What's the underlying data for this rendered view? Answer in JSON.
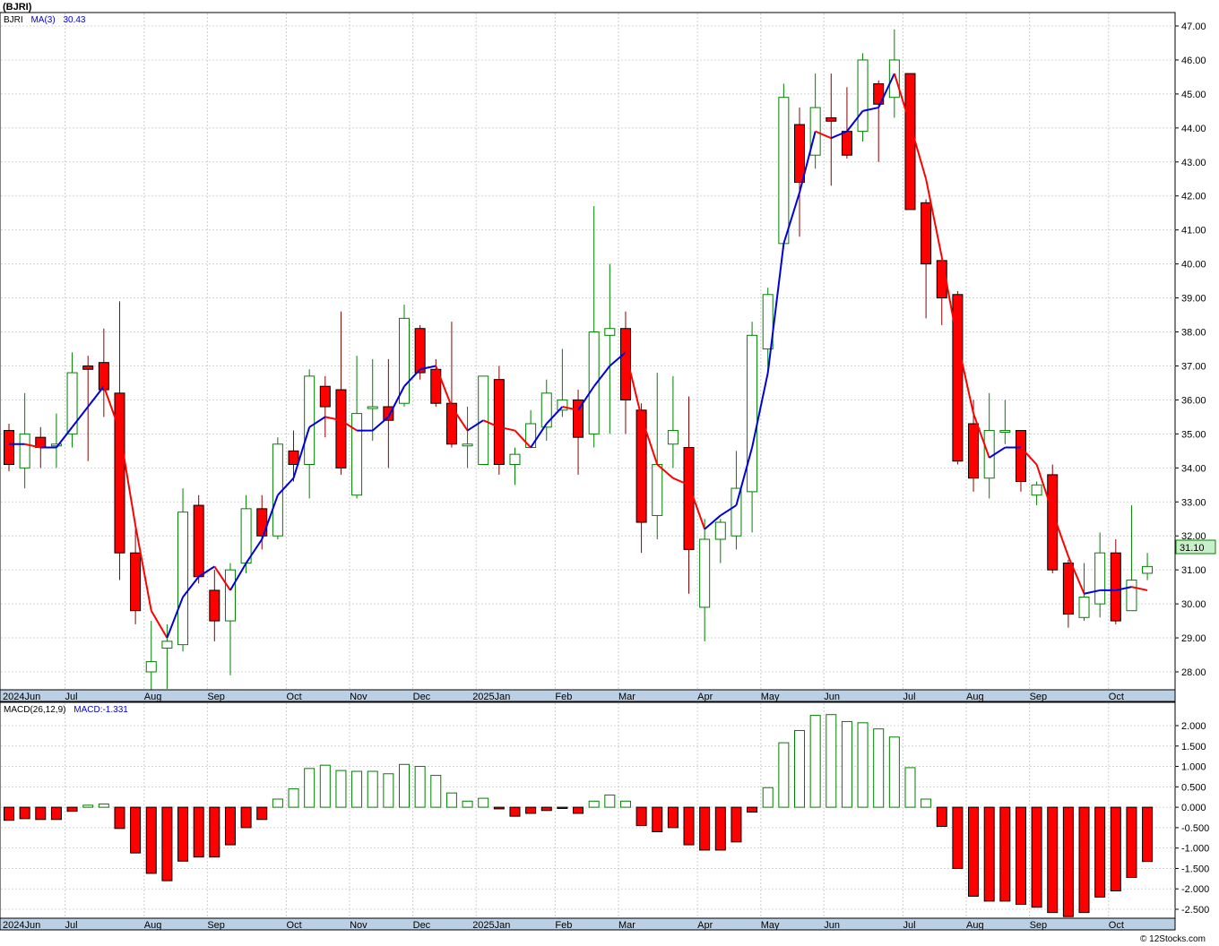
{
  "title": "(BJRI)",
  "credit": "© 12Stocks.com",
  "colors": {
    "up_candle": "#008000",
    "down_candle": "#ff0000",
    "ma_up": "#0000dd",
    "ma_down": "#ff0000",
    "axis_bar": "#bcd0e5",
    "last_price_box": "#c8f0c8"
  },
  "price_panel": {
    "legend_symbol": "BJRI",
    "legend_ma": "MA(3)",
    "legend_ma_value": "30.43",
    "last_price": "31.10",
    "y_ticks": [
      "28.00",
      "29.00",
      "30.00",
      "31.00",
      "32.00",
      "33.00",
      "34.00",
      "35.00",
      "36.00",
      "37.00",
      "38.00",
      "39.00",
      "40.00",
      "41.00",
      "42.00",
      "43.00",
      "44.00",
      "45.00",
      "46.00",
      "47.00"
    ]
  },
  "macd_panel": {
    "legend_label": "MACD(26,12,9)",
    "legend_value": "MACD:-1.331",
    "y_ticks": [
      "2.000",
      "1.500",
      "1.000",
      "0.500",
      "0.000",
      "-0.500",
      "-1.000",
      "-1.500",
      "-2.000",
      "-2.500"
    ]
  },
  "x_axis_labels": [
    {
      "label": "2024Jun",
      "week": 0
    },
    {
      "label": "Jul",
      "week": 4
    },
    {
      "label": "Aug",
      "week": 9
    },
    {
      "label": "Sep",
      "week": 13
    },
    {
      "label": "Oct",
      "week": 18
    },
    {
      "label": "Nov",
      "week": 22
    },
    {
      "label": "Dec",
      "week": 26
    },
    {
      "label": "2025Jan",
      "week": 30
    },
    {
      "label": "Feb",
      "week": 35
    },
    {
      "label": "Mar",
      "week": 39
    },
    {
      "label": "Apr",
      "week": 44
    },
    {
      "label": "May",
      "week": 48
    },
    {
      "label": "Jun",
      "week": 52
    },
    {
      "label": "Jul",
      "week": 57
    },
    {
      "label": "Aug",
      "week": 61
    },
    {
      "label": "Sep",
      "week": 65
    },
    {
      "label": "Oct",
      "week": 70
    }
  ],
  "chart_data": [
    {
      "type": "candlestick",
      "title": "(BJRI)",
      "ylim": [
        27.5,
        47.3
      ],
      "grid": true,
      "series": [
        {
          "name": "BJRI",
          "ohlc": [
            [
              35.1,
              35.3,
              33.9,
              34.1
            ],
            [
              34.0,
              36.2,
              33.4,
              35.0
            ],
            [
              34.9,
              35.2,
              34.0,
              34.6
            ],
            [
              34.7,
              35.6,
              34.0,
              34.7
            ],
            [
              35.0,
              37.4,
              34.6,
              36.8
            ],
            [
              37.0,
              37.3,
              34.2,
              36.9
            ],
            [
              37.1,
              38.1,
              35.5,
              36.3
            ],
            [
              36.2,
              38.9,
              30.7,
              31.5
            ],
            [
              31.5,
              32.2,
              29.4,
              29.8
            ],
            [
              28.0,
              29.5,
              27.4,
              28.3
            ],
            [
              28.7,
              29.4,
              27.5,
              28.9
            ],
            [
              28.8,
              33.4,
              28.6,
              32.7
            ],
            [
              32.9,
              33.2,
              30.6,
              30.8
            ],
            [
              30.4,
              31.0,
              28.9,
              29.5
            ],
            [
              29.5,
              31.2,
              27.9,
              31.0
            ],
            [
              31.2,
              33.2,
              30.9,
              32.8
            ],
            [
              32.8,
              33.2,
              31.6,
              32.0
            ],
            [
              32.0,
              34.9,
              31.9,
              34.7
            ],
            [
              34.5,
              35.1,
              33.6,
              34.1
            ],
            [
              34.1,
              36.9,
              33.1,
              36.7
            ],
            [
              36.4,
              36.7,
              34.9,
              35.8
            ],
            [
              36.3,
              38.6,
              33.8,
              34.0
            ],
            [
              33.2,
              37.3,
              33.1,
              35.6
            ],
            [
              35.8,
              37.2,
              34.8,
              35.8
            ],
            [
              35.8,
              37.2,
              34.0,
              35.4
            ],
            [
              35.9,
              38.8,
              35.8,
              38.4
            ],
            [
              38.1,
              38.2,
              36.6,
              36.8
            ],
            [
              36.9,
              37.2,
              35.8,
              35.9
            ],
            [
              35.9,
              38.3,
              34.6,
              34.7
            ],
            [
              34.7,
              35.8,
              34.0,
              34.7
            ],
            [
              34.1,
              36.7,
              34.1,
              36.7
            ],
            [
              36.6,
              37.0,
              33.8,
              34.1
            ],
            [
              34.1,
              34.6,
              33.5,
              34.4
            ],
            [
              34.6,
              35.7,
              34.6,
              35.3
            ],
            [
              35.2,
              36.6,
              34.8,
              36.2
            ],
            [
              35.7,
              37.5,
              35.5,
              36.0
            ],
            [
              36.0,
              36.3,
              33.8,
              34.9
            ],
            [
              35.0,
              41.7,
              34.6,
              38.0
            ],
            [
              37.9,
              40.0,
              35.0,
              38.1
            ],
            [
              38.1,
              38.6,
              35.0,
              36.0
            ],
            [
              35.7,
              35.9,
              31.5,
              32.4
            ],
            [
              32.6,
              36.8,
              31.9,
              34.1
            ],
            [
              34.7,
              36.7,
              34.0,
              35.1
            ],
            [
              34.6,
              36.1,
              30.3,
              31.6
            ],
            [
              29.9,
              32.5,
              28.9,
              31.9
            ],
            [
              31.9,
              32.5,
              31.2,
              32.4
            ],
            [
              32.0,
              34.5,
              31.6,
              33.4
            ],
            [
              33.3,
              38.3,
              32.1,
              37.9
            ],
            [
              37.5,
              39.3,
              36.8,
              39.1
            ],
            [
              40.6,
              45.3,
              40.5,
              44.9
            ],
            [
              44.1,
              44.6,
              40.8,
              42.4
            ],
            [
              43.2,
              45.6,
              42.8,
              44.6
            ],
            [
              44.3,
              45.6,
              42.3,
              44.2
            ],
            [
              43.9,
              45.2,
              43.1,
              43.2
            ],
            [
              43.9,
              46.2,
              43.6,
              46.0
            ],
            [
              45.3,
              45.4,
              43.0,
              44.7
            ],
            [
              44.9,
              46.9,
              44.3,
              46.0
            ],
            [
              45.6,
              45.6,
              41.6,
              41.6
            ],
            [
              41.8,
              41.9,
              38.4,
              40.0
            ],
            [
              40.1,
              40.1,
              38.2,
              39.0
            ],
            [
              39.1,
              39.2,
              34.1,
              34.2
            ],
            [
              35.3,
              36.0,
              33.3,
              33.7
            ],
            [
              33.7,
              36.2,
              33.1,
              35.1
            ],
            [
              35.1,
              36.0,
              34.7,
              35.1
            ],
            [
              35.1,
              35.1,
              33.3,
              33.6
            ],
            [
              33.2,
              33.6,
              32.9,
              33.5
            ],
            [
              33.8,
              34.1,
              30.9,
              31.0
            ],
            [
              31.2,
              31.3,
              29.3,
              29.7
            ],
            [
              29.6,
              31.2,
              29.5,
              30.2
            ],
            [
              30.0,
              32.1,
              29.6,
              31.5
            ],
            [
              31.5,
              31.9,
              29.4,
              29.5
            ],
            [
              29.8,
              32.9,
              29.8,
              30.7
            ],
            [
              30.9,
              31.5,
              30.7,
              31.1
            ]
          ]
        },
        {
          "name": "MA(3)",
          "values": [
            34.7,
            34.7,
            34.6,
            34.6,
            35.2,
            35.8,
            36.4,
            35.1,
            32.3,
            29.8,
            29.0,
            30.2,
            30.8,
            31.1,
            30.4,
            31.2,
            31.9,
            33.2,
            33.7,
            35.2,
            35.5,
            35.4,
            35.1,
            35.1,
            35.5,
            36.4,
            36.9,
            37.0,
            35.8,
            35.1,
            35.4,
            35.2,
            35.1,
            34.6,
            35.3,
            35.8,
            35.7,
            36.4,
            37.0,
            37.4,
            35.5,
            34.1,
            33.7,
            33.5,
            32.2,
            32.6,
            32.9,
            34.6,
            36.8,
            40.6,
            42.1,
            43.9,
            43.7,
            43.9,
            44.5,
            44.6,
            45.6,
            44.1,
            42.5,
            40.2,
            37.7,
            35.6,
            34.3,
            34.6,
            34.6,
            34.1,
            32.7,
            31.4,
            30.3,
            30.4,
            30.4,
            30.5,
            30.4
          ]
        }
      ]
    },
    {
      "type": "bar",
      "title": "MACD(26,12,9)",
      "ylim": [
        -2.7,
        2.3
      ],
      "grid": true,
      "series": [
        {
          "name": "MACD",
          "values": [
            -0.32,
            -0.28,
            -0.3,
            -0.3,
            -0.1,
            0.05,
            0.08,
            -0.52,
            -1.12,
            -1.62,
            -1.8,
            -1.32,
            -1.22,
            -1.22,
            -0.92,
            -0.5,
            -0.3,
            0.2,
            0.45,
            0.95,
            1.03,
            0.9,
            0.88,
            0.88,
            0.82,
            1.05,
            1.0,
            0.78,
            0.35,
            0.15,
            0.22,
            -0.04,
            -0.22,
            -0.15,
            -0.08,
            -0.03,
            -0.15,
            0.15,
            0.3,
            0.15,
            -0.45,
            -0.6,
            -0.5,
            -0.92,
            -1.05,
            -1.05,
            -0.85,
            -0.12,
            0.48,
            1.58,
            1.88,
            2.25,
            2.27,
            2.1,
            2.07,
            1.92,
            1.72,
            0.97,
            0.2,
            -0.47,
            -1.5,
            -2.18,
            -2.3,
            -2.3,
            -2.38,
            -2.45,
            -2.58,
            -2.68,
            -2.58,
            -2.2,
            -2.05,
            -1.72,
            -1.33
          ]
        }
      ]
    }
  ]
}
